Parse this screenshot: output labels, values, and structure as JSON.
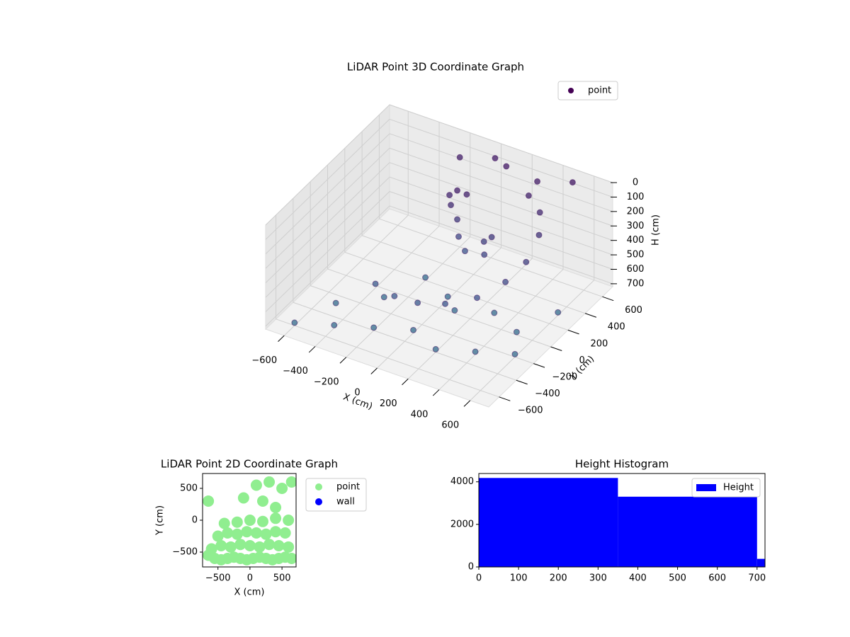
{
  "chart_data": [
    {
      "type": "scatter3d",
      "title": "LiDAR Point 3D Coordinate Graph",
      "xlabel": "X (cm)",
      "ylabel": "Y (cm)",
      "zlabel": "H (cm)",
      "xlim": [
        -720,
        720
      ],
      "ylim": [
        -720,
        720
      ],
      "zlim": [
        720,
        0
      ],
      "xticks": [
        {
          "value": -600,
          "label": "−600"
        },
        {
          "value": -400,
          "label": "−400"
        },
        {
          "value": -200,
          "label": "−200"
        },
        0,
        200,
        400,
        600
      ],
      "yticks": [
        {
          "value": -600,
          "label": "−600"
        },
        {
          "value": -400,
          "label": "−400"
        },
        {
          "value": -200,
          "label": "−200"
        },
        0,
        200,
        400,
        600
      ],
      "zticks": [
        0,
        100,
        200,
        300,
        400,
        500,
        600,
        700
      ],
      "cmap": "viridis",
      "grid": true,
      "legend": "upper right",
      "series": [
        {
          "name": "point",
          "color": "#440154",
          "x": [
            -300,
            -150,
            0,
            150,
            300,
            400,
            450,
            450,
            400,
            300,
            -100,
            -50,
            0,
            -80,
            -50,
            -30,
            0,
            150,
            200,
            180,
            -600,
            -400,
            -200,
            0,
            200,
            400,
            600,
            -500,
            -300,
            100,
            300,
            500,
            600,
            -200,
            0,
            100,
            300,
            500,
            -200,
            0
          ],
          "y": [
            -200,
            -250,
            -250,
            -200,
            -100,
            50,
            200,
            350,
            450,
            500,
            300,
            300,
            320,
            280,
            300,
            280,
            300,
            250,
            250,
            200,
            -600,
            -500,
            -400,
            -300,
            -400,
            -300,
            -200,
            -300,
            -100,
            0,
            100,
            0,
            300,
            200,
            100,
            600,
            600,
            650,
            600,
            650
          ],
          "z": [
            550,
            550,
            540,
            520,
            480,
            420,
            350,
            250,
            170,
            120,
            150,
            100,
            120,
            200,
            300,
            400,
            500,
            350,
            300,
            400,
            700,
            700,
            700,
            700,
            700,
            700,
            700,
            700,
            700,
            700,
            700,
            700,
            700,
            700,
            700,
            50,
            80,
            40,
            100,
            60
          ]
        }
      ]
    },
    {
      "type": "scatter",
      "title": "LiDAR Point 2D Coordinate Graph",
      "xlabel": "X (cm)",
      "ylabel": "Y (cm)",
      "xlim": [
        -740,
        720
      ],
      "ylim": [
        -733,
        733
      ],
      "xticks": [
        {
          "value": -500,
          "label": "−500"
        },
        0,
        500
      ],
      "yticks": [
        {
          "value": -500,
          "label": "−500"
        },
        0,
        500
      ],
      "legend": "outside right",
      "series": [
        {
          "name": "point",
          "color": "#90ee90",
          "x": [
            -650,
            -550,
            -450,
            -350,
            -250,
            -150,
            -50,
            50,
            150,
            250,
            350,
            450,
            550,
            650,
            -600,
            -450,
            -300,
            -150,
            0,
            150,
            300,
            450,
            600,
            -500,
            -350,
            -200,
            -50,
            100,
            250,
            400,
            550,
            -400,
            -200,
            0,
            200,
            400,
            600,
            -650,
            -100,
            100,
            300,
            500,
            650,
            200,
            400
          ],
          "y": [
            -550,
            -600,
            -620,
            -600,
            -580,
            -600,
            -620,
            -600,
            -580,
            -600,
            -620,
            -600,
            -580,
            -600,
            -450,
            -400,
            -420,
            -380,
            -400,
            -420,
            -380,
            -400,
            -420,
            -250,
            -200,
            -220,
            -180,
            -200,
            -220,
            -180,
            -200,
            -50,
            -30,
            0,
            -20,
            30,
            0,
            300,
            350,
            550,
            600,
            500,
            600,
            300,
            200
          ]
        },
        {
          "name": "wall",
          "color": "#0000ff",
          "x": [],
          "y": []
        }
      ]
    },
    {
      "type": "histogram",
      "title": "Height Histogram",
      "bins": [
        0,
        350,
        700,
        720
      ],
      "xlim": [
        0,
        720
      ],
      "ylim": [
        0,
        4390
      ],
      "xticks": [
        0,
        100,
        200,
        300,
        400,
        500,
        600,
        700
      ],
      "yticks": [
        0,
        2000,
        4000
      ],
      "legend": "upper right",
      "series": [
        {
          "name": "Height",
          "color": "#0000ff",
          "values": [
            4180,
            3300,
            380
          ]
        }
      ]
    }
  ]
}
